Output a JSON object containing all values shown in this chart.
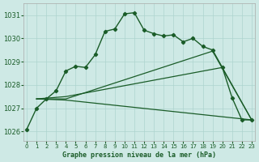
{
  "title": "Graphe pression niveau de la mer (hPa)",
  "bg_color": "#cee9e5",
  "grid_color": "#aed4cf",
  "line_color": "#1a5c28",
  "ylim": [
    1025.6,
    1031.5
  ],
  "xlim": [
    -0.3,
    23.3
  ],
  "yticks": [
    1026,
    1027,
    1028,
    1029,
    1030,
    1031
  ],
  "xticks": [
    0,
    1,
    2,
    3,
    4,
    5,
    6,
    7,
    8,
    9,
    10,
    11,
    12,
    13,
    14,
    15,
    16,
    17,
    18,
    19,
    20,
    21,
    22,
    23
  ],
  "series": [
    {
      "x": [
        0,
        1,
        2,
        3,
        4,
        5,
        6,
        7,
        8,
        9,
        10,
        11,
        12,
        13,
        14,
        15,
        16,
        17,
        18,
        19,
        20,
        21,
        22,
        23
      ],
      "y": [
        1026.1,
        1027.0,
        1027.4,
        1027.75,
        1028.6,
        1028.8,
        1028.75,
        1029.3,
        1030.3,
        1030.4,
        1031.05,
        1031.1,
        1030.35,
        1030.2,
        1030.1,
        1030.15,
        1029.85,
        1030.0,
        1029.65,
        1029.5,
        1028.75,
        1027.45,
        1026.5,
        1026.5
      ],
      "marker": true,
      "lw": 1.0,
      "ls": "-"
    },
    {
      "x": [
        1,
        4,
        19,
        23
      ],
      "y": [
        1027.4,
        1027.4,
        1029.45,
        1026.5
      ],
      "marker": false,
      "lw": 0.9,
      "ls": "-"
    },
    {
      "x": [
        1,
        4,
        20,
        23
      ],
      "y": [
        1027.4,
        1027.5,
        1028.75,
        1026.5
      ],
      "marker": false,
      "lw": 0.9,
      "ls": "-"
    },
    {
      "x": [
        1,
        4,
        23
      ],
      "y": [
        1027.4,
        1027.35,
        1026.5
      ],
      "marker": false,
      "lw": 0.9,
      "ls": "-"
    }
  ]
}
